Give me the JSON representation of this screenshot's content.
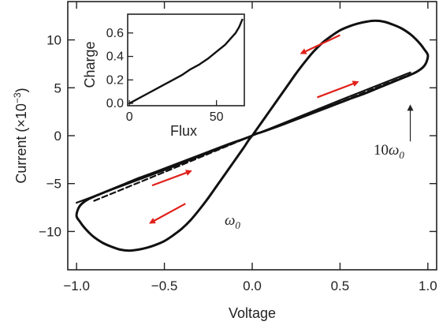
{
  "colors": {
    "line": "#111111",
    "axis": "#222222",
    "arrow": "#e0201a"
  },
  "chart_data": [
    {
      "type": "line",
      "xlabel": "Voltage",
      "ylabel_prefix": "Current (×10",
      "ylabel_exponent": "−3",
      "ylabel_suffix": ")",
      "xlim": [
        -1.05,
        1.05
      ],
      "ylim": [
        -14,
        14
      ],
      "x_ticks": [
        -1.0,
        -0.5,
        0.0,
        0.5,
        1.0
      ],
      "x_tick_labels": [
        "−1.0",
        "−0.5",
        "0.0",
        "0.5",
        "1.0"
      ],
      "y_ticks": [
        10,
        5,
        0,
        -5,
        -10
      ],
      "y_tick_labels": [
        "10",
        "5",
        "0",
        "−5",
        "−10"
      ],
      "grid": false,
      "annotations": {
        "omega0_label": "ω",
        "omega0_sub": "0",
        "omega10_prefix": "10",
        "omega10_label": "ω",
        "omega10_sub": "0"
      },
      "series": [
        {
          "style": "solid",
          "description_param": "omega0_loop",
          "x": [
            0.0,
            0.05,
            0.1,
            0.15,
            0.2,
            0.25,
            0.3,
            0.35,
            0.4,
            0.45,
            0.5,
            0.55,
            0.6,
            0.65,
            0.7,
            0.75,
            0.8,
            0.85,
            0.9,
            0.93,
            0.96,
            0.98,
            1.0,
            0.99,
            0.97,
            0.93,
            0.88,
            0.8,
            0.72,
            0.64,
            0.55,
            0.45,
            0.35,
            0.25,
            0.15,
            0.05,
            0.0,
            -0.05,
            -0.1,
            -0.15,
            -0.2,
            -0.25,
            -0.3,
            -0.35,
            -0.4,
            -0.45,
            -0.5,
            -0.55,
            -0.6,
            -0.65,
            -0.7,
            -0.75,
            -0.8,
            -0.85,
            -0.9,
            -0.93,
            -0.96,
            -0.98,
            -1.0,
            -0.99,
            -0.97,
            -0.93,
            -0.88,
            -0.8,
            -0.72,
            -0.64,
            -0.55,
            -0.45,
            -0.35,
            -0.25,
            -0.15,
            -0.05,
            0.0
          ],
          "y": [
            0.0,
            1.3,
            2.6,
            3.9,
            5.2,
            6.5,
            7.7,
            8.8,
            9.7,
            10.4,
            11.0,
            11.4,
            11.7,
            11.9,
            12.0,
            11.9,
            11.6,
            11.2,
            10.6,
            10.1,
            9.5,
            9.0,
            8.4,
            7.6,
            7.1,
            6.6,
            6.2,
            5.6,
            5.0,
            4.4,
            3.8,
            3.1,
            2.4,
            1.7,
            1.0,
            0.35,
            0.0,
            -1.3,
            -2.6,
            -3.9,
            -5.2,
            -6.5,
            -7.7,
            -8.8,
            -9.7,
            -10.4,
            -11.0,
            -11.4,
            -11.7,
            -11.9,
            -12.0,
            -11.9,
            -11.6,
            -11.2,
            -10.6,
            -10.1,
            -9.5,
            -9.0,
            -8.4,
            -7.6,
            -7.1,
            -6.6,
            -6.2,
            -5.6,
            -5.0,
            -4.4,
            -3.8,
            -3.1,
            -2.4,
            -1.7,
            -1.0,
            -0.35,
            0.0
          ]
        },
        {
          "style": "solid",
          "description_param": "10omega0_upper",
          "x": [
            -1.0,
            -0.5,
            0.0,
            0.5,
            0.9
          ],
          "y": [
            -7.0,
            -3.6,
            0.0,
            3.7,
            6.6
          ]
        },
        {
          "style": "dashed",
          "description_param": "10omega0_lower",
          "x": [
            -0.9,
            -0.5,
            0.0,
            0.5,
            0.9
          ],
          "y": [
            -6.8,
            -3.8,
            0.0,
            3.5,
            6.4
          ]
        }
      ],
      "arrows": [
        {
          "from": [
            0.5,
            10.5
          ],
          "to": [
            0.28,
            8.6
          ]
        },
        {
          "from": [
            0.37,
            4.0
          ],
          "to": [
            0.6,
            5.6
          ]
        },
        {
          "from": [
            -0.57,
            -5.2
          ],
          "to": [
            -0.35,
            -3.7
          ]
        },
        {
          "from": [
            -0.38,
            -7.1
          ],
          "to": [
            -0.58,
            -9.1
          ]
        }
      ],
      "pointer": {
        "from": [
          0.9,
          -0.6
        ],
        "to": [
          0.9,
          3.1
        ]
      }
    },
    {
      "type": "line",
      "xlabel": "Flux",
      "ylabel": "Charge",
      "xlim": [
        -1,
        66
      ],
      "ylim": [
        -0.02,
        0.76
      ],
      "x_ticks": [
        0,
        50
      ],
      "x_tick_labels": [
        "0",
        "50"
      ],
      "y_ticks": [
        0.6,
        0.4,
        0.2,
        0.0
      ],
      "y_tick_labels": [
        "0.6",
        "0.4",
        "0.2",
        "0.0"
      ],
      "grid": false,
      "series": [
        {
          "x": [
            0,
            5,
            10,
            15,
            20,
            25,
            30,
            35,
            40,
            45,
            50,
            55,
            58,
            61,
            63,
            65
          ],
          "y": [
            0.0,
            0.04,
            0.08,
            0.12,
            0.16,
            0.2,
            0.24,
            0.29,
            0.33,
            0.38,
            0.44,
            0.5,
            0.55,
            0.6,
            0.65,
            0.72
          ]
        }
      ]
    }
  ]
}
